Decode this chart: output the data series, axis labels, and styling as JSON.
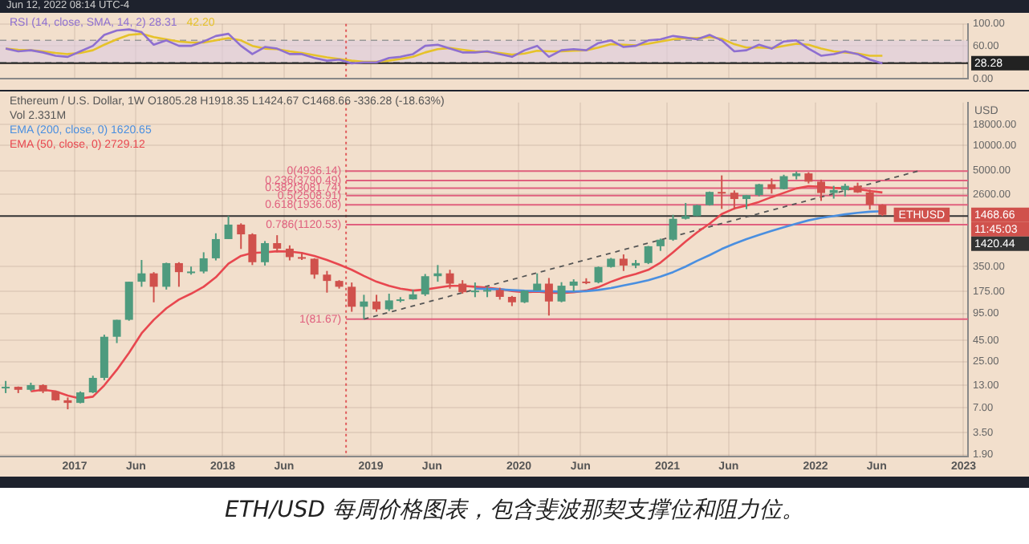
{
  "chart_data": [
    {
      "type": "line",
      "legend": "top left",
      "grid": true,
      "tick_labels": "y",
      "x": [
        "2016-07-15",
        "2016-08-15",
        "2016-09-15",
        "2016-10-15",
        "2016-11-15",
        "2016-12-15",
        "2017-01-15",
        "2017-02-15",
        "2017-03-15",
        "2017-04-15",
        "2017-05-15",
        "2017-06-15",
        "2017-07-15",
        "2017-08-15",
        "2017-09-15",
        "2017-10-15",
        "2017-11-15",
        "2017-12-15",
        "2018-01-15",
        "2018-02-15",
        "2018-03-15",
        "2018-04-15",
        "2018-05-15",
        "2018-06-15",
        "2018-07-15",
        "2018-08-15",
        "2018-09-15",
        "2018-10-15",
        "2018-11-15",
        "2018-12-15",
        "2019-01-15",
        "2019-02-15",
        "2019-03-15",
        "2019-04-15",
        "2019-05-15",
        "2019-06-15",
        "2019-07-15",
        "2019-08-15",
        "2019-09-15",
        "2019-10-15",
        "2019-11-15",
        "2019-12-15",
        "2020-01-15",
        "2020-02-15",
        "2020-03-15",
        "2020-04-15",
        "2020-05-15",
        "2020-06-15",
        "2020-07-15",
        "2020-08-15",
        "2020-09-15",
        "2020-10-15",
        "2020-11-15",
        "2020-12-15",
        "2021-01-15",
        "2021-02-15",
        "2021-03-15",
        "2021-04-15",
        "2021-05-15",
        "2021-06-15",
        "2021-07-15",
        "2021-08-15",
        "2021-09-15",
        "2021-10-15",
        "2021-11-15",
        "2021-12-15",
        "2022-01-15",
        "2022-02-15",
        "2022-03-15",
        "2022-04-15",
        "2022-05-15",
        "2022-06-15"
      ],
      "series": [
        {
          "name": "RSI (14, close, SMA, 14, 2)  28.31",
          "color": "#8e6fd0",
          "values": [
            55,
            50,
            52,
            48,
            42,
            40,
            50,
            60,
            80,
            88,
            90,
            85,
            62,
            70,
            60,
            60,
            68,
            78,
            82,
            60,
            45,
            58,
            55,
            45,
            45,
            38,
            33,
            35,
            28,
            30,
            30,
            38,
            40,
            45,
            60,
            62,
            55,
            48,
            48,
            50,
            45,
            40,
            52,
            60,
            40,
            52,
            54,
            52,
            65,
            70,
            58,
            60,
            70,
            72,
            78,
            75,
            72,
            80,
            70,
            50,
            52,
            62,
            55,
            68,
            70,
            55,
            42,
            45,
            50,
            45,
            35,
            28
          ]
        },
        {
          "name": "42.20",
          "color": "#e6c229",
          "values": [
            55,
            53,
            52,
            50,
            47,
            45,
            47,
            52,
            62,
            72,
            80,
            82,
            76,
            72,
            68,
            66,
            66,
            70,
            74,
            70,
            60,
            55,
            54,
            50,
            47,
            43,
            39,
            36,
            33,
            31,
            31,
            33,
            36,
            40,
            48,
            54,
            56,
            53,
            50,
            49,
            47,
            44,
            46,
            51,
            50,
            50,
            51,
            52,
            57,
            63,
            62,
            61,
            64,
            68,
            72,
            74,
            74,
            76,
            73,
            63,
            57,
            57,
            56,
            60,
            64,
            62,
            55,
            50,
            48,
            46,
            42,
            42
          ]
        }
      ],
      "ylim": [
        0,
        100
      ],
      "yticks": [
        {
          "value": 100,
          "label": "100.00"
        },
        {
          "value": 60,
          "label": "60.00"
        },
        {
          "value": 0,
          "label": "0.00"
        }
      ],
      "xlim": [
        "2016-07-01",
        "2023-01-12"
      ],
      "xticks": [
        {
          "value": "2017-01-01",
          "label": null
        },
        {
          "value": "2017-06-01",
          "label": null
        },
        {
          "value": "2018-01-01",
          "label": null
        },
        {
          "value": "2018-06-01",
          "label": null
        },
        {
          "value": "2019-01-01",
          "label": null
        },
        {
          "value": "2019-06-01",
          "label": null
        },
        {
          "value": "2020-01-01",
          "label": null
        },
        {
          "value": "2020-06-01",
          "label": null
        },
        {
          "value": "2021-01-01",
          "label": null
        },
        {
          "value": "2021-06-01",
          "label": null
        },
        {
          "value": "2022-01-01",
          "label": null
        },
        {
          "value": "2022-06-01",
          "label": null
        },
        {
          "value": "2023-01-01",
          "label": null
        }
      ],
      "bands": [
        {
          "axis": "y",
          "from": 30,
          "to": 70,
          "color": "#dccbe0"
        }
      ],
      "ref_lines": [
        {
          "axis": "x",
          "value": "2018-11-01",
          "color": "#e05a5a",
          "line_style": "dotted"
        },
        {
          "axis": "y",
          "value": 70,
          "color": "#999999",
          "line_style": "dashed"
        },
        {
          "axis": "y",
          "value": 30,
          "color": "#999999",
          "line_style": "dashed"
        },
        {
          "axis": "y",
          "value": 28.28,
          "label": "28.28",
          "color": "#222222",
          "line_style": "solid"
        }
      ],
      "annotations": [
        "Jun 12, 2022 08:14 UTC-4"
      ]
    },
    {
      "type": "candlestick",
      "title": "Ethereum / U.S. Dollar, 1W",
      "subtitle": "O1805.28 H1918.35 L1424.67 C1468.66 -336.28 (-18.63%)",
      "ylabel": "USD",
      "legend": "top left",
      "grid": true,
      "log": true,
      "x": [
        "2016-07-15",
        "2016-08-15",
        "2016-09-15",
        "2016-10-15",
        "2016-11-15",
        "2016-12-15",
        "2017-01-15",
        "2017-02-15",
        "2017-03-15",
        "2017-04-15",
        "2017-05-15",
        "2017-06-15",
        "2017-07-15",
        "2017-08-15",
        "2017-09-15",
        "2017-10-15",
        "2017-11-15",
        "2017-12-15",
        "2018-01-15",
        "2018-02-15",
        "2018-03-15",
        "2018-04-15",
        "2018-05-15",
        "2018-06-15",
        "2018-07-15",
        "2018-08-15",
        "2018-09-15",
        "2018-10-15",
        "2018-11-15",
        "2018-12-15",
        "2019-01-15",
        "2019-02-15",
        "2019-03-15",
        "2019-04-15",
        "2019-05-15",
        "2019-06-15",
        "2019-07-15",
        "2019-08-15",
        "2019-09-15",
        "2019-10-15",
        "2019-11-15",
        "2019-12-15",
        "2020-01-15",
        "2020-02-15",
        "2020-03-15",
        "2020-04-15",
        "2020-05-15",
        "2020-06-15",
        "2020-07-15",
        "2020-08-15",
        "2020-09-15",
        "2020-10-15",
        "2020-11-15",
        "2020-12-15",
        "2021-01-15",
        "2021-02-15",
        "2021-03-15",
        "2021-04-15",
        "2021-05-15",
        "2021-06-15",
        "2021-07-15",
        "2021-08-15",
        "2021-09-15",
        "2021-10-15",
        "2021-11-15",
        "2021-12-15",
        "2022-01-15",
        "2022-02-15",
        "2022-03-15",
        "2022-04-15",
        "2022-05-15",
        "2022-06-15"
      ],
      "ohlc": [
        [
          12.2,
          14.7,
          10.5,
          12.5
        ],
        [
          12.5,
          12.6,
          10.5,
          11.5
        ],
        [
          11.5,
          14,
          11.1,
          13.1
        ],
        [
          13.1,
          13.4,
          10.5,
          11
        ],
        [
          11,
          11.2,
          8.5,
          8.6
        ],
        [
          8.6,
          9.3,
          6.7,
          8
        ],
        [
          8,
          11,
          7.9,
          10.7
        ],
        [
          10.7,
          17,
          10.5,
          16
        ],
        [
          16,
          53,
          15,
          50
        ],
        [
          50,
          80,
          42,
          80
        ],
        [
          80,
          230,
          78,
          230
        ],
        [
          230,
          420,
          200,
          290
        ],
        [
          290,
          300,
          130,
          200
        ],
        [
          200,
          390,
          185,
          385
        ],
        [
          385,
          395,
          200,
          300
        ],
        [
          300,
          350,
          280,
          305
        ],
        [
          305,
          520,
          290,
          440
        ],
        [
          440,
          880,
          415,
          750
        ],
        [
          750,
          1420,
          750,
          1120
        ],
        [
          1120,
          1160,
          570,
          855
        ],
        [
          855,
          880,
          365,
          395
        ],
        [
          395,
          710,
          360,
          670
        ],
        [
          670,
          835,
          520,
          575
        ],
        [
          575,
          630,
          415,
          455
        ],
        [
          455,
          515,
          420,
          435
        ],
        [
          435,
          440,
          250,
          280
        ],
        [
          280,
          310,
          170,
          235
        ],
        [
          235,
          240,
          190,
          200
        ],
        [
          200,
          225,
          100,
          115
        ],
        [
          115,
          160,
          81.67,
          133
        ],
        [
          133,
          160,
          100,
          107
        ],
        [
          107,
          165,
          102,
          137
        ],
        [
          137,
          150,
          130,
          141
        ],
        [
          141,
          185,
          140,
          162
        ],
        [
          162,
          285,
          155,
          268
        ],
        [
          268,
          365,
          230,
          290
        ],
        [
          290,
          320,
          190,
          218
        ],
        [
          218,
          240,
          165,
          172
        ],
        [
          172,
          225,
          150,
          180
        ],
        [
          180,
          200,
          150,
          183
        ],
        [
          183,
          195,
          140,
          151
        ],
        [
          151,
          155,
          117,
          130
        ],
        [
          130,
          180,
          127,
          180
        ],
        [
          180,
          290,
          180,
          218
        ],
        [
          218,
          255,
          90,
          133
        ],
        [
          133,
          227,
          130,
          206
        ],
        [
          206,
          246,
          176,
          231
        ],
        [
          231,
          253,
          215,
          226
        ],
        [
          226,
          350,
          220,
          346
        ],
        [
          346,
          445,
          340,
          435
        ],
        [
          435,
          490,
          310,
          360
        ],
        [
          360,
          420,
          335,
          386
        ],
        [
          386,
          620,
          375,
          615
        ],
        [
          615,
          760,
          540,
          737
        ],
        [
          737,
          1470,
          715,
          1315
        ],
        [
          1315,
          2040,
          1290,
          1420
        ],
        [
          1420,
          1950,
          1420,
          1920
        ],
        [
          1920,
          2800,
          1900,
          2770
        ],
        [
          2770,
          4380,
          1730,
          2710
        ],
        [
          2710,
          2890,
          1700,
          2275
        ],
        [
          2275,
          2550,
          1720,
          2535
        ],
        [
          2535,
          3470,
          2450,
          3430
        ],
        [
          3430,
          4030,
          2650,
          3000
        ],
        [
          3000,
          4460,
          2970,
          4290
        ],
        [
          4290,
          4870,
          3920,
          4630
        ],
        [
          4630,
          4780,
          3500,
          3680
        ],
        [
          3680,
          3900,
          2160,
          2690
        ],
        [
          2690,
          3280,
          2300,
          2920
        ],
        [
          2920,
          3480,
          2450,
          3280
        ],
        [
          3280,
          3580,
          2700,
          2730
        ],
        [
          2730,
          2960,
          1700,
          1940
        ],
        [
          1940,
          1970,
          1424.67,
          1468.66
        ]
      ],
      "series": [
        {
          "type": "line",
          "name": "EMA (200, close, 0)  1620.65",
          "color": "#4a8fe0",
          "x": [
            "2019-09-15",
            "2019-10-15",
            "2019-11-15",
            "2019-12-15",
            "2020-01-15",
            "2020-02-15",
            "2020-03-15",
            "2020-04-15",
            "2020-05-15",
            "2020-06-15",
            "2020-07-15",
            "2020-08-15",
            "2020-09-15",
            "2020-10-15",
            "2020-11-15",
            "2020-12-15",
            "2021-01-15",
            "2021-02-15",
            "2021-03-15",
            "2021-04-15",
            "2021-05-15",
            "2021-06-15",
            "2021-07-15",
            "2021-08-15",
            "2021-09-15",
            "2021-10-15",
            "2021-11-15",
            "2021-12-15",
            "2022-01-15",
            "2022-02-15",
            "2022-03-15",
            "2022-04-15",
            "2022-05-15",
            "2022-06-15"
          ],
          "values": [
            190,
            188,
            186,
            182,
            179,
            178,
            176,
            175,
            175,
            177,
            183,
            193,
            207,
            222,
            240,
            265,
            300,
            350,
            410,
            480,
            570,
            660,
            750,
            840,
            940,
            1040,
            1150,
            1260,
            1350,
            1420,
            1490,
            1550,
            1600,
            1620.65
          ]
        },
        {
          "type": "line",
          "name": "EMA (50, close, 0)  2729.12",
          "color": "#e8474f",
          "x": [
            "2016-09-15",
            "2016-10-15",
            "2016-11-15",
            "2016-12-15",
            "2017-01-15",
            "2017-02-15",
            "2017-03-15",
            "2017-04-15",
            "2017-05-15",
            "2017-06-15",
            "2017-07-15",
            "2017-08-15",
            "2017-09-15",
            "2017-10-15",
            "2017-11-15",
            "2017-12-15",
            "2018-01-15",
            "2018-02-15",
            "2018-03-15",
            "2018-04-15",
            "2018-05-15",
            "2018-06-15",
            "2018-07-15",
            "2018-08-15",
            "2018-09-15",
            "2018-10-15",
            "2018-11-15",
            "2018-12-15",
            "2019-01-15",
            "2019-02-15",
            "2019-03-15",
            "2019-04-15",
            "2019-05-15",
            "2019-06-15",
            "2019-07-15",
            "2019-08-15",
            "2019-09-15",
            "2019-10-15",
            "2019-11-15",
            "2019-12-15",
            "2020-01-15",
            "2020-02-15",
            "2020-03-15",
            "2020-04-15",
            "2020-05-15",
            "2020-06-15",
            "2020-07-15",
            "2020-08-15",
            "2020-09-15",
            "2020-10-15",
            "2020-11-15",
            "2020-12-15",
            "2021-01-15",
            "2021-02-15",
            "2021-03-15",
            "2021-04-15",
            "2021-05-15",
            "2021-06-15",
            "2021-07-15",
            "2021-08-15",
            "2021-09-15",
            "2021-10-15",
            "2021-11-15",
            "2021-12-15",
            "2022-01-15",
            "2022-02-15",
            "2022-03-15",
            "2022-04-15",
            "2022-05-15",
            "2022-06-15"
          ],
          "values": [
            11,
            11.5,
            11,
            9.8,
            9,
            9.5,
            13,
            20,
            32,
            55,
            80,
            110,
            140,
            165,
            200,
            260,
            380,
            470,
            510,
            520,
            535,
            530,
            510,
            470,
            420,
            370,
            320,
            270,
            230,
            205,
            190,
            180,
            185,
            195,
            205,
            205,
            200,
            195,
            188,
            178,
            172,
            175,
            170,
            168,
            172,
            180,
            198,
            230,
            260,
            285,
            320,
            390,
            520,
            700,
            900,
            1150,
            1500,
            1750,
            1900,
            2100,
            2400,
            2700,
            3050,
            3250,
            3200,
            3100,
            3050,
            3000,
            2850,
            2729.12
          ]
        },
        {
          "type": "line",
          "color": "#555555",
          "line_style": "dashed",
          "x": [
            "2018-12-15",
            "2022-09-15"
          ],
          "values": [
            81.67,
            5000
          ]
        }
      ],
      "ylim": [
        1.8,
        33000
      ],
      "yticks": [
        {
          "value": 1.9,
          "label": "1.90"
        },
        {
          "value": 3.5,
          "label": "3.50"
        },
        {
          "value": 7,
          "label": "7.00"
        },
        {
          "value": 13,
          "label": "13.00"
        },
        {
          "value": 25,
          "label": "25.00"
        },
        {
          "value": 45,
          "label": "45.00"
        },
        {
          "value": 95,
          "label": "95.00"
        },
        {
          "value": 175,
          "label": "175.00"
        },
        {
          "value": 350,
          "label": "350.00"
        },
        {
          "value": 2600,
          "label": "2600.00"
        },
        {
          "value": 5000,
          "label": "5000.00"
        },
        {
          "value": 10000,
          "label": "10000.00"
        },
        {
          "value": 18000,
          "label": "18000.00"
        }
      ],
      "xlim": [
        "2016-07-01",
        "2023-01-12"
      ],
      "xticks": [
        {
          "value": "2017-01-01",
          "label": "2017"
        },
        {
          "value": "2017-06-01",
          "label": "Jun"
        },
        {
          "value": "2018-01-01",
          "label": "2018"
        },
        {
          "value": "2018-06-01",
          "label": "Jun"
        },
        {
          "value": "2019-01-01",
          "label": "2019"
        },
        {
          "value": "2019-06-01",
          "label": "Jun"
        },
        {
          "value": "2020-01-01",
          "label": "2020"
        },
        {
          "value": "2020-06-01",
          "label": "Jun"
        },
        {
          "value": "2021-01-01",
          "label": "2021"
        },
        {
          "value": "2021-06-01",
          "label": "Jun"
        },
        {
          "value": "2022-01-01",
          "label": "2022"
        },
        {
          "value": "2022-06-01",
          "label": "Jun"
        },
        {
          "value": "2023-01-01",
          "label": "2023"
        }
      ],
      "ref_lines": [
        {
          "axis": "x",
          "value": "2018-11-01",
          "color": "#e05a5a",
          "line_style": "dotted"
        },
        {
          "axis": "y",
          "value": 4936.14,
          "label": "0(4936.14)",
          "color": "#e0607e"
        },
        {
          "axis": "y",
          "value": 3790.49,
          "label": "0.236(3790.49)",
          "color": "#e0607e"
        },
        {
          "axis": "y",
          "value": 3081.74,
          "label": "0.382(3081.74)",
          "color": "#e0607e"
        },
        {
          "axis": "y",
          "value": 2508.91,
          "label": "0.5(2508.91)",
          "color": "#e0607e"
        },
        {
          "axis": "y",
          "value": 1936.08,
          "label": "0.618(1936.08)",
          "color": "#e0607e"
        },
        {
          "axis": "y",
          "value": 1120.53,
          "label": "0.786(1120.53)",
          "color": "#e0607e"
        },
        {
          "axis": "y",
          "value": 81.67,
          "label": "1(81.67)",
          "color": "#e0607e"
        },
        {
          "axis": "y",
          "value": 1420.44,
          "label": "1420.44",
          "color": "#333333",
          "line_style": "solid"
        }
      ],
      "annotations": [
        "Vol 2.331M",
        {
          "text": "ETHUSD",
          "x": "2022-09-20",
          "y": 1468.66
        },
        "1468.66",
        "11:45:03",
        "ETH/USD 每周价格图表，包含斐波那契支撑位和阻力位。"
      ]
    }
  ]
}
